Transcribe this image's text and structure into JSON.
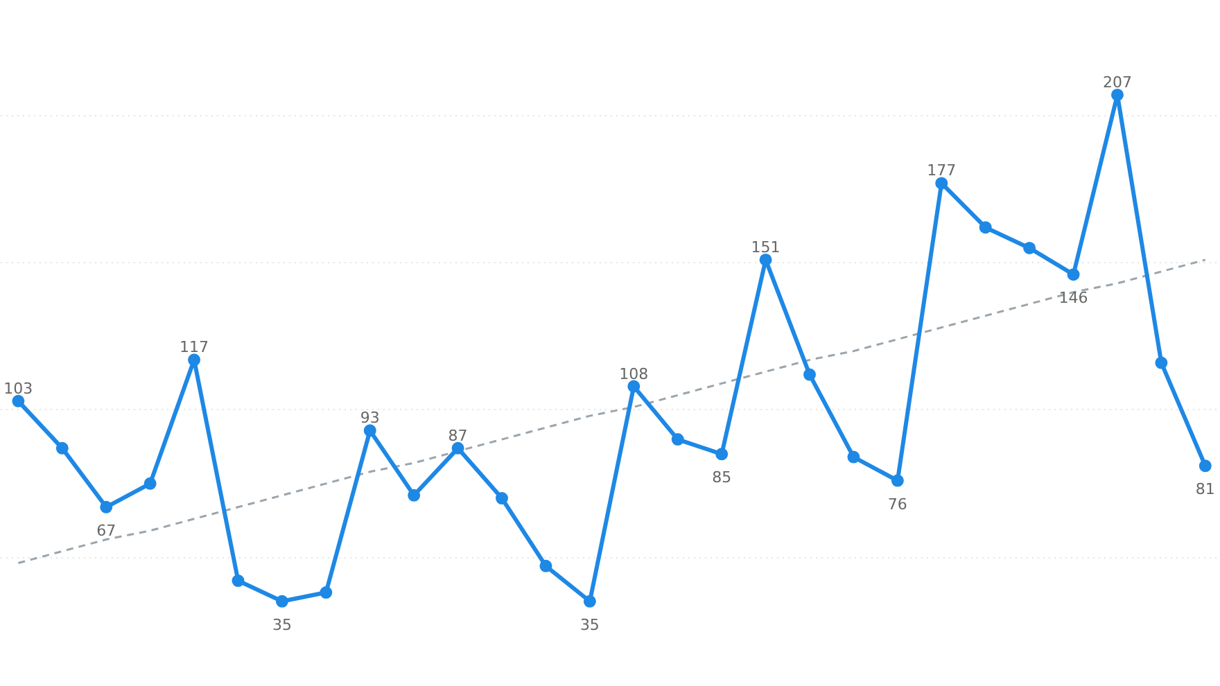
{
  "chart_data": {
    "type": "line",
    "categories": [
      null,
      null,
      null,
      null,
      null,
      null,
      null,
      null,
      null,
      null,
      null,
      null,
      null,
      null,
      null,
      null,
      null,
      null,
      null,
      null,
      null,
      null,
      null,
      null,
      null,
      null,
      null,
      null
    ],
    "ylim": [
      6,
      239
    ],
    "yticks": [
      {
        "value": 50,
        "label": null
      },
      {
        "value": 100,
        "label": null
      },
      {
        "value": 150,
        "label": null
      },
      {
        "value": 200,
        "label": null
      }
    ],
    "grid": "y",
    "marker": "circle",
    "line_style": "solid",
    "tick_labels": false,
    "series": [
      {
        "color": "#1e88e5",
        "values": [
          103,
          87,
          67,
          75,
          117,
          42,
          35,
          38,
          93,
          71,
          87,
          70,
          47,
          35,
          108,
          90,
          85,
          151,
          112,
          84,
          76,
          177,
          162,
          155,
          146,
          207,
          116,
          81
        ],
        "value_labels": [
          "103",
          null,
          "67",
          null,
          "117",
          null,
          "35",
          null,
          "93",
          null,
          "87",
          null,
          null,
          "35",
          "108",
          null,
          "85",
          "151",
          null,
          null,
          "76",
          "177",
          null,
          null,
          "146",
          "207",
          null,
          "81"
        ]
      },
      {
        "type": "line",
        "values": [
          48,
          52,
          56,
          59,
          63,
          67,
          71,
          75,
          79,
          82,
          86,
          90,
          94,
          98,
          101,
          105,
          109,
          113,
          117,
          120,
          124,
          128,
          132,
          136,
          140,
          143,
          147,
          151
        ],
        "color": "#9aa5ad",
        "line_style": "dashed",
        "marker": "none"
      }
    ]
  }
}
